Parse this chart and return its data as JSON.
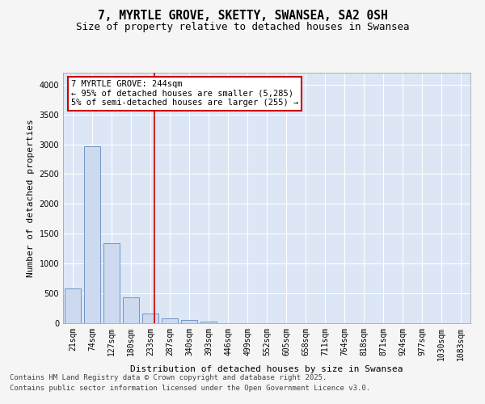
{
  "title": "7, MYRTLE GROVE, SKETTY, SWANSEA, SA2 0SH",
  "subtitle": "Size of property relative to detached houses in Swansea",
  "xlabel": "Distribution of detached houses by size in Swansea",
  "ylabel": "Number of detached properties",
  "bar_color": "#ccd9ee",
  "bar_edge_color": "#7096c8",
  "plot_bg_color": "#dce6f5",
  "fig_bg_color": "#f5f5f5",
  "categories": [
    "21sqm",
    "74sqm",
    "127sqm",
    "180sqm",
    "233sqm",
    "287sqm",
    "340sqm",
    "393sqm",
    "446sqm",
    "499sqm",
    "552sqm",
    "605sqm",
    "658sqm",
    "711sqm",
    "764sqm",
    "818sqm",
    "871sqm",
    "924sqm",
    "977sqm",
    "1030sqm",
    "1083sqm"
  ],
  "values": [
    580,
    2970,
    1340,
    430,
    160,
    75,
    50,
    30,
    0,
    0,
    0,
    0,
    0,
    0,
    0,
    0,
    0,
    0,
    0,
    0,
    0
  ],
  "ylim": [
    0,
    4200
  ],
  "yticks": [
    0,
    500,
    1000,
    1500,
    2000,
    2500,
    3000,
    3500,
    4000
  ],
  "vline_color": "#cc0000",
  "annotation_text": "7 MYRTLE GROVE: 244sqm\n← 95% of detached houses are smaller (5,285)\n5% of semi-detached houses are larger (255) →",
  "annotation_box_edge_color": "#cc0000",
  "annotation_box_face_color": "#ffffff",
  "footer_line1": "Contains HM Land Registry data © Crown copyright and database right 2025.",
  "footer_line2": "Contains public sector information licensed under the Open Government Licence v3.0.",
  "grid_color": "#ffffff",
  "title_fontsize": 10.5,
  "subtitle_fontsize": 9,
  "axis_label_fontsize": 8,
  "tick_fontsize": 7,
  "annotation_fontsize": 7.5,
  "footer_fontsize": 6.5
}
